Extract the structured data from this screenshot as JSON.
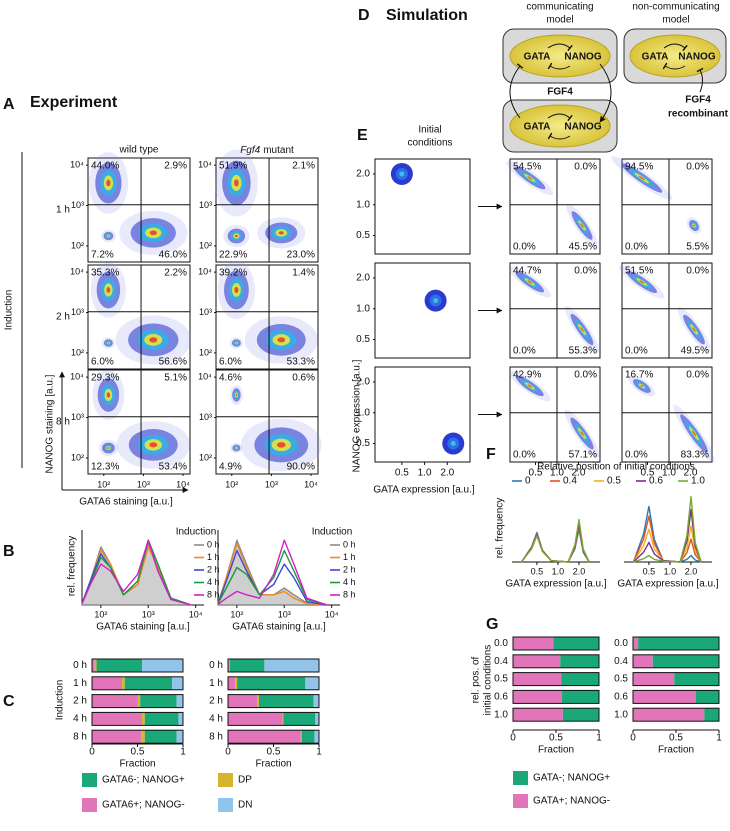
{
  "panel_a": {
    "label": "A",
    "title": "Experiment",
    "col_wt": "wild type",
    "mutant_gene": "Fgf4",
    "mutant_suffix": "mutant",
    "row_title": "Induction",
    "rows": [
      "1 h",
      "2 h",
      "8 h"
    ],
    "ylabel": "NANOG staining [a.u.]",
    "xlabel": "GATA6 staining [a.u.]",
    "lim": [
      40,
      15000
    ],
    "ticks": [
      {
        "value": 100,
        "label": "10²"
      },
      {
        "value": 1000,
        "label": "10³"
      },
      {
        "value": 10000,
        "label": "10⁴"
      }
    ],
    "quadrants": [
      [
        [
          "44.0%",
          "2.9%",
          "7.2%",
          "46.0%"
        ],
        [
          "51.9%",
          "2.1%",
          "22.9%",
          "23.0%"
        ]
      ],
      [
        [
          "35.3%",
          "2.2%",
          "6.0%",
          "56.6%"
        ],
        [
          "39.2%",
          "1.4%",
          "6.0%",
          "53.3%"
        ]
      ],
      [
        [
          "29.3%",
          "5.1%",
          "12.3%",
          "53.4%"
        ],
        [
          "4.6%",
          "0.6%",
          "4.9%",
          "90.0%"
        ]
      ]
    ]
  },
  "panel_b": {
    "label": "B",
    "legend_title": "Induction",
    "ylabel": "rel. frequency",
    "xlabel": "GATA6 staining [a.u.]",
    "xlim": [
      40,
      15000
    ],
    "ylim": [
      0,
      1.1
    ],
    "xticks": [
      {
        "value": 100,
        "label": "10²"
      },
      {
        "value": 1000,
        "label": "10³"
      },
      {
        "value": 10000,
        "label": "10⁴"
      }
    ],
    "x": [
      40,
      60,
      100,
      160,
      300,
      600,
      1000,
      1600,
      3000,
      8000
    ],
    "series": [
      {
        "name": "0 h",
        "color": "#8c8c8c"
      },
      {
        "name": "1 h",
        "color": "#f08a24"
      },
      {
        "name": "2 h",
        "color": "#3b48d8"
      },
      {
        "name": "4 h",
        "color": "#1c9b3a"
      },
      {
        "name": "8 h",
        "color": "#d21fc6"
      }
    ],
    "plots": [
      [
        [
          0.02,
          0.35,
          0.85,
          0.6,
          0.15,
          0.3,
          0.9,
          0.5,
          0.08,
          0
        ],
        [
          0.02,
          0.35,
          0.8,
          0.6,
          0.15,
          0.3,
          0.85,
          0.55,
          0.1,
          0
        ],
        [
          0.02,
          0.35,
          0.75,
          0.55,
          0.15,
          0.35,
          0.95,
          0.6,
          0.1,
          0
        ],
        [
          0.02,
          0.3,
          0.7,
          0.55,
          0.15,
          0.35,
          0.95,
          0.6,
          0.1,
          0
        ],
        [
          0.02,
          0.3,
          0.6,
          0.5,
          0.2,
          0.45,
          0.95,
          0.5,
          0.08,
          0
        ]
      ],
      [
        [
          0.02,
          0.4,
          0.95,
          0.6,
          0.15,
          0.15,
          0.25,
          0.15,
          0.03,
          0
        ],
        [
          0.02,
          0.4,
          0.9,
          0.55,
          0.15,
          0.15,
          0.2,
          0.1,
          0.02,
          0
        ],
        [
          0.02,
          0.35,
          0.8,
          0.5,
          0.15,
          0.3,
          0.6,
          0.4,
          0.05,
          0
        ],
        [
          0.02,
          0.25,
          0.55,
          0.45,
          0.15,
          0.4,
          0.8,
          0.5,
          0.08,
          0
        ],
        [
          0.01,
          0.1,
          0.2,
          0.15,
          0.1,
          0.45,
          0.95,
          0.6,
          0.1,
          0
        ]
      ]
    ]
  },
  "panel_c": {
    "label": "C",
    "ylabel": "Induction",
    "xlabel": "Fraction",
    "categories": [
      "0 h",
      "1 h",
      "2 h",
      "4 h",
      "8 h"
    ],
    "xlim": [
      0,
      1
    ],
    "xticks": [
      0,
      0.5,
      1
    ],
    "segments": [
      {
        "name": "GATA6+; NANOG-",
        "color": "#e274b9"
      },
      {
        "name": "DP",
        "color": "#d6b52e"
      },
      {
        "name": "GATA6-; NANOG+",
        "color": "#1aa878"
      },
      {
        "name": "DN",
        "color": "#92c3e8"
      }
    ],
    "plots": [
      {
        "values": [
          [
            0.03,
            0.02,
            0.5,
            0.45
          ],
          [
            0.33,
            0.03,
            0.52,
            0.12
          ],
          [
            0.5,
            0.03,
            0.4,
            0.07
          ],
          [
            0.55,
            0.03,
            0.37,
            0.05
          ],
          [
            0.54,
            0.04,
            0.35,
            0.07
          ]
        ]
      },
      {
        "values": [
          [
            0.01,
            0.01,
            0.38,
            0.6
          ],
          [
            0.08,
            0.02,
            0.75,
            0.15
          ],
          [
            0.32,
            0.02,
            0.6,
            0.06
          ],
          [
            0.6,
            0.01,
            0.35,
            0.04
          ],
          [
            0.8,
            0.01,
            0.14,
            0.05
          ]
        ]
      }
    ]
  },
  "panel_d": {
    "label": "D",
    "title": "Simulation",
    "comm_title": [
      "communicating",
      "model"
    ],
    "noncomm_title": [
      "non-communicating",
      "model"
    ],
    "gata": "GATA",
    "nanog": "NANOG",
    "fgf4": "FGF4",
    "recombinant": "recombinant"
  },
  "panel_e": {
    "label": "E",
    "initial_title": [
      "Initial",
      "conditions"
    ],
    "ylabel": "NANOG expression [a.u.]",
    "xlabel": "GATA expression [a.u.]",
    "xlim": [
      0.22,
      4
    ],
    "ylim": [
      0.33,
      2.8
    ],
    "ticks": [
      0.5,
      {
        "value": 1,
        "label": "1.0"
      },
      {
        "value": 2,
        "label": "2.0"
      }
    ],
    "initial": [
      {
        "gata": 0.5,
        "nanog": 2.0
      },
      {
        "gata": 1.4,
        "nanog": 1.2
      },
      {
        "gata": 2.4,
        "nanog": 0.5
      }
    ],
    "communicating": [
      [
        "54.5%",
        "0.0%",
        "0.0%",
        "45.5%"
      ],
      [
        "44.7%",
        "0.0%",
        "0.0%",
        "55.3%"
      ],
      [
        "42.9%",
        "0.0%",
        "0.0%",
        "57.1%"
      ]
    ],
    "non_communicating": [
      [
        "94.5%",
        "0.0%",
        "0.0%",
        "5.5%"
      ],
      [
        "51.5%",
        "0.0%",
        "0.0%",
        "49.5%"
      ],
      [
        "16.7%",
        "0.0%",
        "0.0%",
        "83.3%"
      ]
    ]
  },
  "panel_f": {
    "label": "F",
    "legend_title": "Relative position of initial conditions",
    "ylabel": "rel. frequency",
    "xlabel": "GATA expression [a.u.]",
    "xlim": [
      0.22,
      4
    ],
    "ylim": [
      0,
      1.1
    ],
    "xticks": [
      0.5,
      {
        "value": 1,
        "label": "1.0"
      },
      {
        "value": 2,
        "label": "2.0"
      }
    ],
    "x": [
      0.3,
      0.42,
      0.5,
      0.6,
      0.8,
      1.4,
      1.75,
      2,
      2.3,
      2.8
    ],
    "series": [
      {
        "name": "0",
        "color": "#2a7ab8"
      },
      {
        "name": "0.4",
        "color": "#e2531d"
      },
      {
        "name": "0.5",
        "color": "#eeb220"
      },
      {
        "name": "0.6",
        "color": "#7e2f8e"
      },
      {
        "name": "1.0",
        "color": "#77ac30"
      }
    ],
    "plots": [
      [
        [
          0,
          0.23,
          0.45,
          0.18,
          0.02,
          0,
          0.2,
          0.5,
          0.15,
          0
        ],
        [
          0,
          0.22,
          0.44,
          0.18,
          0.02,
          0,
          0.22,
          0.55,
          0.17,
          0
        ],
        [
          0,
          0.21,
          0.42,
          0.17,
          0.02,
          0,
          0.24,
          0.6,
          0.18,
          0
        ],
        [
          0,
          0.21,
          0.42,
          0.17,
          0.02,
          0,
          0.24,
          0.6,
          0.18,
          0
        ],
        [
          0,
          0.2,
          0.4,
          0.16,
          0.02,
          0,
          0.26,
          0.65,
          0.2,
          0
        ]
      ],
      [
        [
          0,
          0.43,
          0.85,
          0.34,
          0.02,
          0,
          0.04,
          0.1,
          0.03,
          0
        ],
        [
          0,
          0.35,
          0.7,
          0.28,
          0.02,
          0,
          0.14,
          0.35,
          0.11,
          0
        ],
        [
          0,
          0.25,
          0.5,
          0.2,
          0.02,
          0,
          0.22,
          0.55,
          0.17,
          0
        ],
        [
          0,
          0.15,
          0.3,
          0.12,
          0.02,
          0,
          0.32,
          0.8,
          0.24,
          0
        ],
        [
          0,
          0.05,
          0.1,
          0.04,
          0.01,
          0,
          0.4,
          1.0,
          0.3,
          0
        ]
      ]
    ]
  },
  "panel_g": {
    "label": "G",
    "ylabel": [
      "rel. pos. of",
      "initial conditions"
    ],
    "xlabel": "Fraction",
    "categories": [
      "0.0",
      "0.4",
      "0.5",
      "0.6",
      "1.0"
    ],
    "xlim": [
      0,
      1
    ],
    "xticks": [
      0,
      0.5,
      1
    ],
    "segments": [
      {
        "name": "GATA+; NANOG-",
        "color": "#e274b9"
      },
      {
        "name": "GATA-; NANOG+",
        "color": "#1aa878"
      }
    ],
    "plots": [
      {
        "values": [
          [
            0.47,
            0.53
          ],
          [
            0.55,
            0.45
          ],
          [
            0.56,
            0.44
          ],
          [
            0.57,
            0.43
          ],
          [
            0.58,
            0.42
          ]
        ]
      },
      {
        "values": [
          [
            0.06,
            0.94
          ],
          [
            0.23,
            0.77
          ],
          [
            0.48,
            0.52
          ],
          [
            0.73,
            0.27
          ],
          [
            0.83,
            0.17
          ]
        ]
      }
    ]
  }
}
